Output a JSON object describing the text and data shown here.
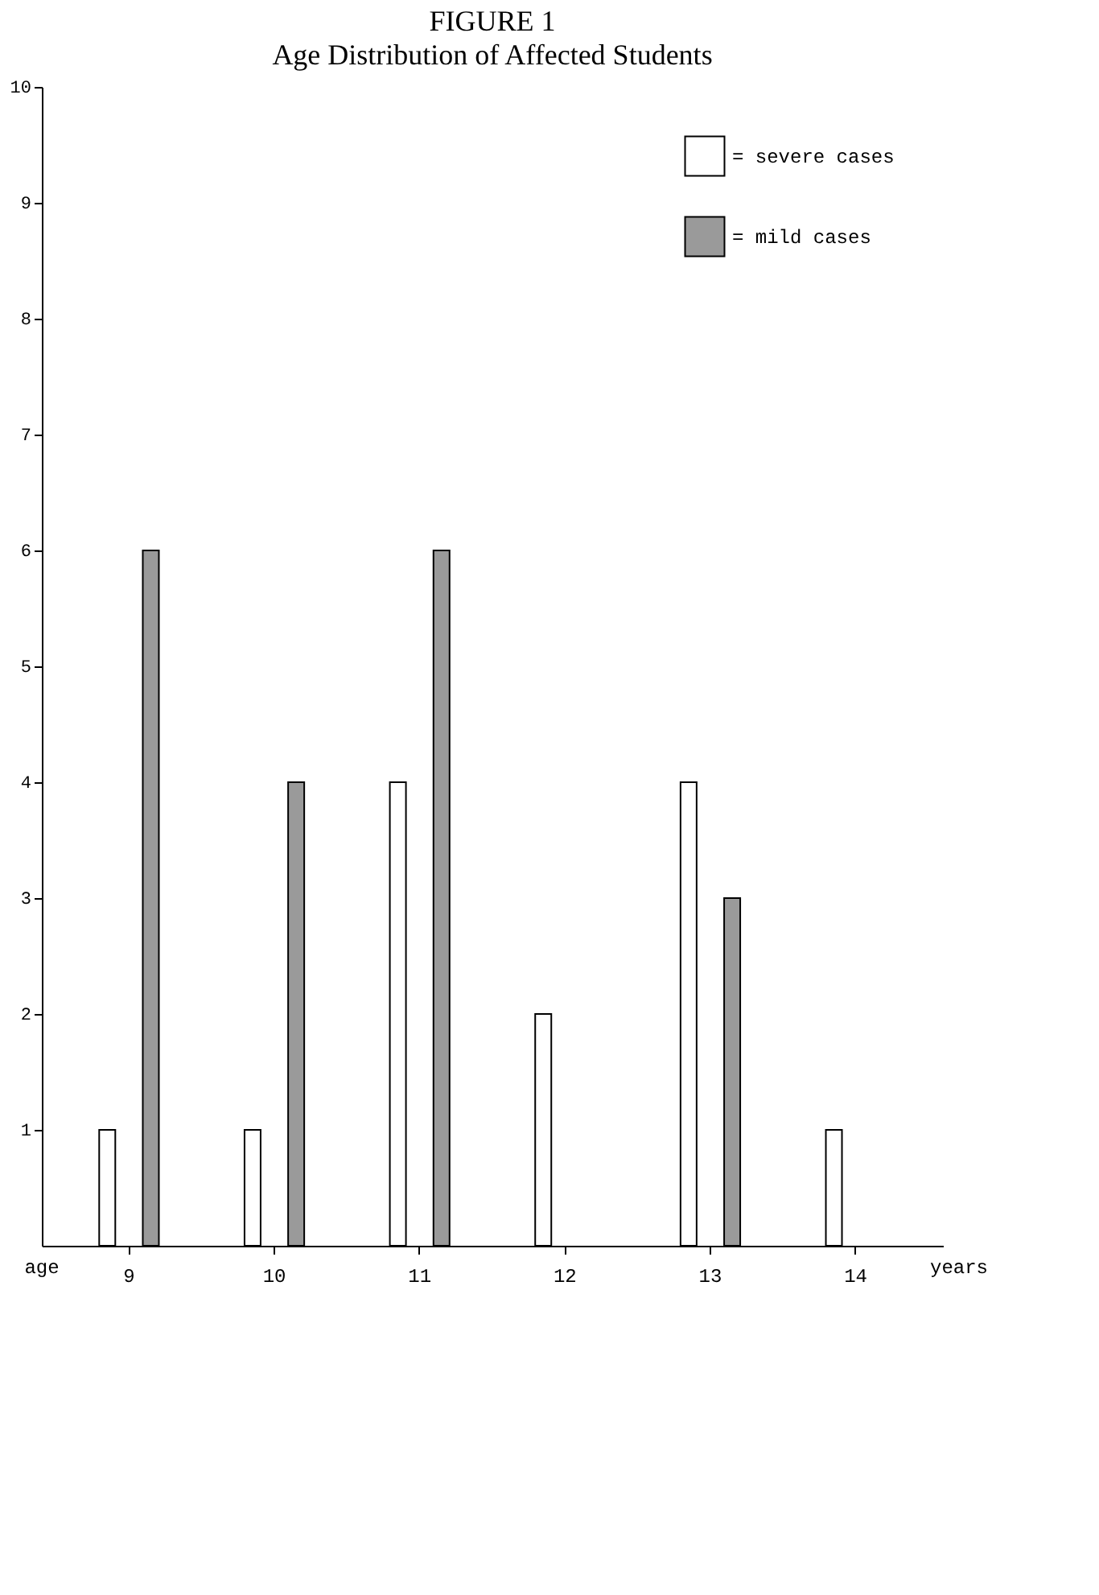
{
  "chart_data": {
    "type": "bar",
    "title": "FIGURE 1",
    "subtitle": "Age Distribution of Affected Students",
    "categories": [
      "9",
      "10",
      "11",
      "12",
      "13",
      "14"
    ],
    "series": [
      {
        "name": "= severe cases",
        "color": "#ffffff",
        "values": [
          1,
          1,
          4,
          2,
          4,
          1
        ]
      },
      {
        "name": "= mild cases",
        "color": "#9a9a9a",
        "values": [
          6,
          4,
          6,
          null,
          3,
          null
        ]
      }
    ],
    "ylim": [
      0,
      10
    ],
    "yticks": [
      1,
      2,
      3,
      4,
      5,
      6,
      7,
      8,
      9,
      10
    ],
    "annotations": [
      "age",
      "years"
    ],
    "grid": false,
    "legend": "top right"
  }
}
